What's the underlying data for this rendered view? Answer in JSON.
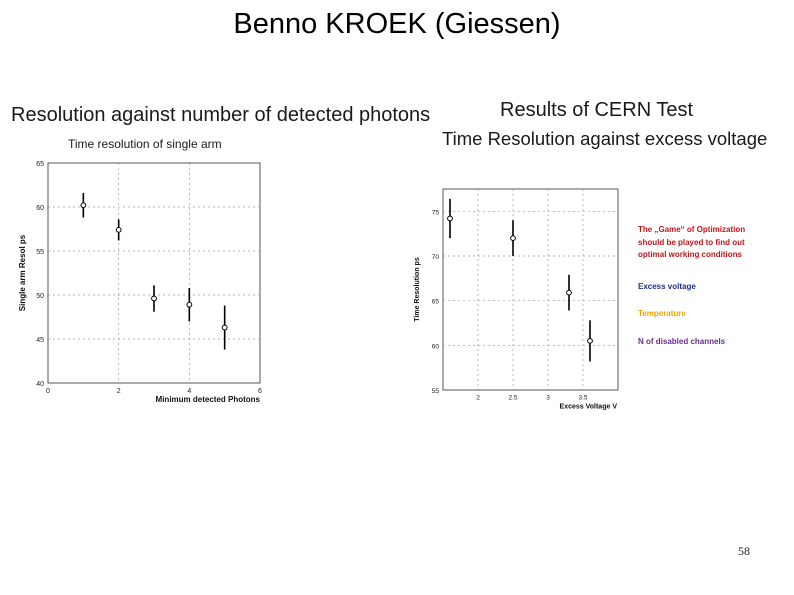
{
  "slide": {
    "title": "Benno KROEK (Giessen)",
    "page_number": "58",
    "left_heading": "Resolution against number of detected photons",
    "right_heading_line1": "Results of CERN Test",
    "right_heading_line2": "Time Resolution against excess voltage",
    "annotations": {
      "game": "The „Game“ of Optimization should be played to find out optimal working conditions",
      "excess_voltage": "Excess voltage",
      "temperature": "Temperature",
      "disabled_channels": "N of disabled channels"
    },
    "colors": {
      "game": "#c0161c",
      "excess_voltage": "#1f2f86",
      "temperature": "#e8a800",
      "disabled_channels": "#6a2c8e"
    }
  },
  "chart_data": [
    {
      "type": "scatter",
      "title": "Time resolution of single arm",
      "xlabel": "Minimum detected Photons",
      "ylabel": "Single arm Resol ps",
      "xlim": [
        0,
        6
      ],
      "ylim": [
        40,
        65
      ],
      "xticks": [
        0,
        2,
        4,
        6
      ],
      "yticks": [
        40,
        45,
        50,
        55,
        60,
        65
      ],
      "grid": true,
      "points": [
        {
          "x": 1,
          "y": 60.2,
          "yerr": 1.4
        },
        {
          "x": 2,
          "y": 57.4,
          "yerr": 1.2
        },
        {
          "x": 3,
          "y": 49.6,
          "yerr": 1.5
        },
        {
          "x": 4,
          "y": 48.9,
          "yerr": 1.9
        },
        {
          "x": 5,
          "y": 46.3,
          "yerr": 2.5
        }
      ]
    },
    {
      "type": "scatter",
      "title": "",
      "xlabel": "Excess Voltage V",
      "ylabel": "Time Resolution ps",
      "xlim": [
        1.5,
        4.0
      ],
      "ylim": [
        55,
        77.5
      ],
      "xticks": [
        2,
        2.5,
        3,
        3.5
      ],
      "yticks": [
        55,
        60,
        65,
        70,
        75
      ],
      "grid": true,
      "points": [
        {
          "x": 1.6,
          "y": 74.2,
          "yerr": 2.2
        },
        {
          "x": 2.5,
          "y": 72.0,
          "yerr": 2.0
        },
        {
          "x": 3.3,
          "y": 65.9,
          "yerr": 2.0
        },
        {
          "x": 3.6,
          "y": 60.5,
          "yerr": 2.3
        }
      ]
    }
  ]
}
